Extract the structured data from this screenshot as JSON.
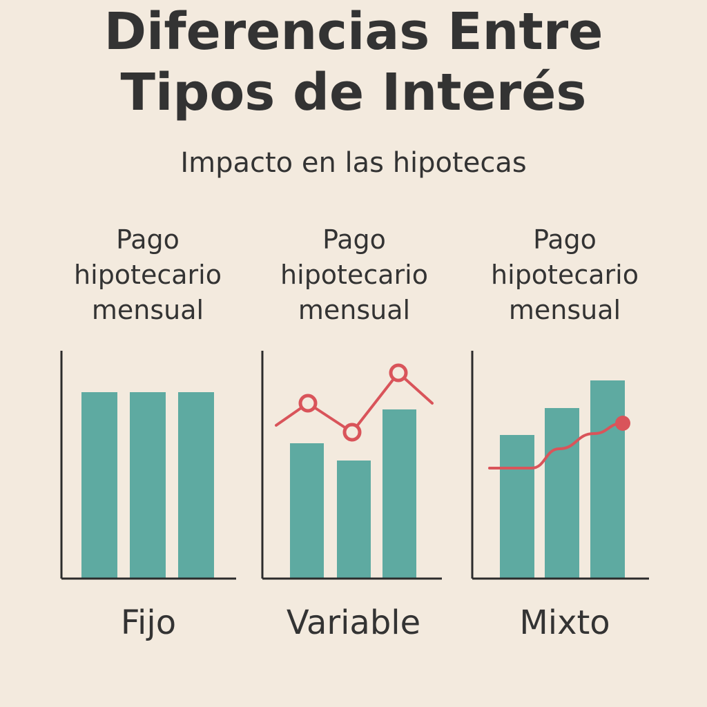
{
  "header": {
    "title_line1": "Diferencias Entre",
    "title_line2": "Tipos de Interés",
    "subtitle": "Impacto en las hipotecas"
  },
  "colors": {
    "background": "#f3eade",
    "bar": "#5eaaa1",
    "line": "#d9545a",
    "axis": "#2b2b2b",
    "text": "#333333"
  },
  "chart_data": [
    {
      "type": "bar",
      "title_lines": [
        "Pago",
        "hipotecario",
        "mensual"
      ],
      "label": "Fijo",
      "values": [
        270,
        270,
        270
      ],
      "ylim": [
        0,
        330
      ]
    },
    {
      "type": "bar",
      "title_lines": [
        "Pago",
        "hipotecario",
        "mensual"
      ],
      "label": "Variable",
      "values": [
        196,
        171,
        245
      ],
      "ylim": [
        0,
        330
      ],
      "line": {
        "style": "polyline",
        "values": [
          222,
          254,
          212,
          298,
          254
        ],
        "markers": [
          false,
          "open",
          "open",
          "open",
          false
        ]
      }
    },
    {
      "type": "bar",
      "title_lines": [
        "Pago",
        "hipotecario",
        "mensual"
      ],
      "label": "Mixto",
      "values": [
        208,
        247,
        287
      ],
      "ylim": [
        0,
        330
      ],
      "line": {
        "style": "curve",
        "values": [
          160,
          160,
          188,
          210,
          225
        ],
        "markers": [
          false,
          false,
          false,
          false,
          "filled"
        ]
      }
    }
  ]
}
